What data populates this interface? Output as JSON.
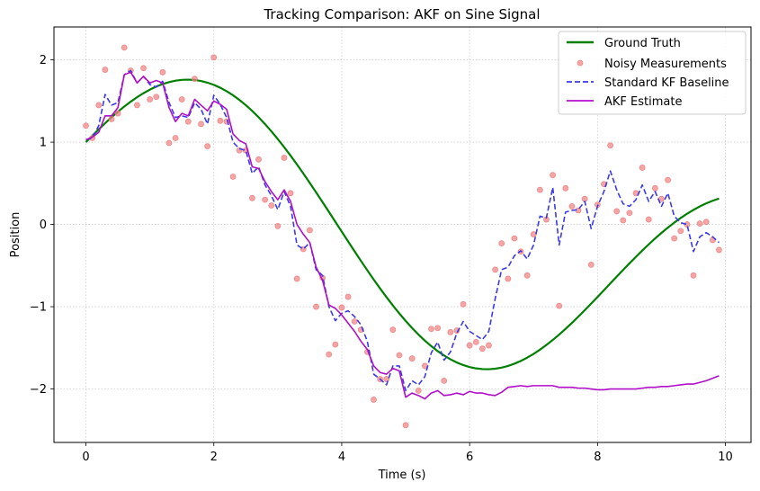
{
  "chart_data": {
    "type": "line",
    "title": "Tracking Comparison: AKF on Sine Signal",
    "xlabel": "Time (s)",
    "ylabel": "Position",
    "xlim": [
      -0.5,
      10.4
    ],
    "ylim": [
      -2.65,
      2.4
    ],
    "x_ticks": [
      0,
      2,
      4,
      6,
      8,
      10
    ],
    "x_tick_labels": [
      "0",
      "2",
      "4",
      "6",
      "8",
      "10"
    ],
    "y_ticks": [
      -2,
      -1,
      0,
      1,
      2
    ],
    "y_tick_labels": [
      "−2",
      "−1",
      "0",
      "1",
      "2"
    ],
    "grid": true,
    "legend_position": "top-right",
    "series": [
      {
        "name": "Ground Truth",
        "kind": "line",
        "color": "#008000",
        "style": "solid",
        "function": "sin(0.8*t) + cos(0.4*t)",
        "t_range": [
          0,
          9.9
        ],
        "t_step": 0.1
      },
      {
        "name": "Noisy Measurements",
        "kind": "scatter",
        "color": "#f08080",
        "x": [
          0.0,
          0.1,
          0.2,
          0.3,
          0.4,
          0.5,
          0.6,
          0.7,
          0.8,
          0.9,
          1.0,
          1.1,
          1.2,
          1.3,
          1.4,
          1.5,
          1.6,
          1.7,
          1.8,
          1.9,
          2.0,
          2.1,
          2.2,
          2.3,
          2.4,
          2.5,
          2.6,
          2.7,
          2.8,
          2.9,
          3.0,
          3.1,
          3.2,
          3.3,
          3.4,
          3.5,
          3.6,
          3.7,
          3.8,
          3.9,
          4.0,
          4.1,
          4.2,
          4.3,
          4.4,
          4.5,
          4.6,
          4.7,
          4.8,
          4.9,
          5.0,
          5.1,
          5.2,
          5.3,
          5.4,
          5.5,
          5.6,
          5.7,
          5.8,
          5.9,
          6.0,
          6.1,
          6.2,
          6.3,
          6.4,
          6.5,
          6.6,
          6.7,
          6.8,
          6.9,
          7.0,
          7.1,
          7.2,
          7.3,
          7.4,
          7.5,
          7.6,
          7.7,
          7.8,
          7.9,
          8.0,
          8.1,
          8.2,
          8.3,
          8.4,
          8.5,
          8.6,
          8.7,
          8.8,
          8.9,
          9.0,
          9.1,
          9.2,
          9.3,
          9.4,
          9.5,
          9.6,
          9.7,
          9.8,
          9.9
        ],
        "y": [
          1.2,
          1.05,
          1.45,
          1.88,
          1.28,
          1.35,
          2.15,
          1.87,
          1.45,
          1.9,
          1.52,
          1.55,
          1.85,
          0.99,
          1.05,
          1.52,
          1.25,
          1.77,
          1.22,
          0.95,
          2.03,
          1.26,
          1.25,
          0.58,
          0.9,
          0.9,
          0.32,
          0.79,
          0.3,
          0.23,
          -0.02,
          0.81,
          0.38,
          -0.66,
          -0.3,
          -0.07,
          -1.0,
          -0.65,
          -1.58,
          -1.46,
          -1.01,
          -0.88,
          -1.18,
          -1.28,
          -1.55,
          -2.13,
          -1.88,
          -1.88,
          -1.28,
          -1.59,
          -2.44,
          -1.63,
          -2.02,
          -1.72,
          -1.27,
          -1.26,
          -1.9,
          -1.31,
          -1.29,
          -0.97,
          -1.47,
          -1.43,
          -1.51,
          -1.47,
          -0.55,
          -0.23,
          -0.66,
          -0.17,
          -0.33,
          -0.62,
          -0.12,
          0.42,
          0.06,
          0.6,
          -0.99,
          0.44,
          0.22,
          0.17,
          0.31,
          -0.49,
          0.24,
          0.49,
          0.96,
          0.16,
          0.05,
          0.14,
          0.38,
          0.69,
          0.06,
          0.44,
          0.31,
          0.54,
          -0.17,
          -0.08,
          0.0,
          -0.62,
          0.01,
          0.03,
          -0.19,
          -0.31
        ]
      },
      {
        "name": "Standard KF Baseline",
        "kind": "line",
        "color": "#3a3ae8",
        "style": "dashed",
        "x": [
          0.0,
          0.1,
          0.2,
          0.3,
          0.4,
          0.5,
          0.6,
          0.7,
          0.8,
          0.9,
          1.0,
          1.1,
          1.2,
          1.3,
          1.4,
          1.5,
          1.6,
          1.7,
          1.8,
          1.9,
          2.0,
          2.1,
          2.2,
          2.3,
          2.4,
          2.5,
          2.6,
          2.7,
          2.8,
          2.9,
          3.0,
          3.1,
          3.2,
          3.3,
          3.4,
          3.5,
          3.6,
          3.7,
          3.8,
          3.9,
          4.0,
          4.1,
          4.2,
          4.3,
          4.4,
          4.5,
          4.6,
          4.7,
          4.8,
          4.9,
          5.0,
          5.1,
          5.2,
          5.3,
          5.4,
          5.5,
          5.6,
          5.7,
          5.8,
          5.9,
          6.0,
          6.1,
          6.2,
          6.3,
          6.4,
          6.5,
          6.6,
          6.7,
          6.8,
          6.9,
          7.0,
          7.1,
          7.2,
          7.3,
          7.4,
          7.5,
          7.6,
          7.7,
          7.8,
          7.9,
          8.0,
          8.1,
          8.2,
          8.3,
          8.4,
          8.5,
          8.6,
          8.7,
          8.8,
          8.9,
          9.0,
          9.1,
          9.2,
          9.3,
          9.4,
          9.5,
          9.6,
          9.7,
          9.8,
          9.9
        ],
        "y": [
          1.03,
          1.05,
          1.2,
          1.58,
          1.45,
          1.48,
          1.82,
          1.87,
          1.72,
          1.8,
          1.7,
          1.67,
          1.74,
          1.48,
          1.3,
          1.32,
          1.3,
          1.48,
          1.4,
          1.22,
          1.57,
          1.46,
          1.3,
          1.0,
          0.92,
          0.9,
          0.62,
          0.7,
          0.48,
          0.35,
          0.18,
          0.4,
          0.22,
          -0.25,
          -0.3,
          -0.22,
          -0.55,
          -0.62,
          -1.0,
          -1.17,
          -1.08,
          -1.05,
          -1.12,
          -1.22,
          -1.42,
          -1.82,
          -1.88,
          -1.95,
          -1.72,
          -1.72,
          -2.02,
          -1.9,
          -1.95,
          -1.85,
          -1.56,
          -1.43,
          -1.65,
          -1.55,
          -1.32,
          -1.18,
          -1.3,
          -1.35,
          -1.4,
          -1.3,
          -0.9,
          -0.55,
          -0.52,
          -0.38,
          -0.32,
          -0.42,
          -0.25,
          0.1,
          0.08,
          0.45,
          -0.25,
          0.15,
          0.17,
          0.18,
          0.28,
          -0.05,
          0.22,
          0.4,
          0.65,
          0.42,
          0.25,
          0.22,
          0.3,
          0.48,
          0.28,
          0.4,
          0.22,
          0.38,
          0.1,
          0.02,
          0.0,
          -0.33,
          -0.15,
          -0.1,
          -0.15,
          -0.22
        ]
      },
      {
        "name": "AKF Estimate",
        "kind": "line",
        "color": "#b00fc8",
        "style": "solid",
        "x": [
          0.0,
          0.1,
          0.2,
          0.3,
          0.4,
          0.5,
          0.6,
          0.7,
          0.8,
          0.9,
          1.0,
          1.1,
          1.2,
          1.3,
          1.4,
          1.5,
          1.6,
          1.7,
          1.8,
          1.9,
          2.0,
          2.1,
          2.2,
          2.3,
          2.4,
          2.5,
          2.6,
          2.7,
          2.8,
          2.9,
          3.0,
          3.1,
          3.2,
          3.3,
          3.4,
          3.5,
          3.6,
          3.7,
          3.8,
          3.9,
          4.0,
          4.1,
          4.2,
          4.3,
          4.4,
          4.5,
          4.6,
          4.7,
          4.8,
          4.9,
          5.0,
          5.1,
          5.2,
          5.3,
          5.4,
          5.5,
          5.6,
          5.7,
          5.8,
          5.9,
          6.0,
          6.1,
          6.2,
          6.3,
          6.4,
          6.5,
          6.6,
          6.7,
          6.8,
          6.9,
          7.0,
          7.1,
          7.2,
          7.3,
          7.4,
          7.5,
          7.6,
          7.7,
          7.8,
          7.9,
          8.0,
          8.1,
          8.2,
          8.3,
          8.4,
          8.5,
          8.6,
          8.7,
          8.8,
          8.9,
          9.0,
          9.1,
          9.2,
          9.3,
          9.4,
          9.5,
          9.6,
          9.7,
          9.8,
          9.9
        ],
        "y": [
          1.03,
          1.06,
          1.12,
          1.32,
          1.32,
          1.42,
          1.82,
          1.85,
          1.72,
          1.8,
          1.72,
          1.75,
          1.72,
          1.42,
          1.25,
          1.35,
          1.32,
          1.52,
          1.45,
          1.38,
          1.5,
          1.46,
          1.4,
          1.1,
          1.02,
          0.98,
          0.7,
          0.68,
          0.52,
          0.4,
          0.3,
          0.42,
          0.28,
          0.0,
          -0.12,
          -0.22,
          -0.52,
          -0.68,
          -0.98,
          -1.02,
          -1.1,
          -1.2,
          -1.3,
          -1.42,
          -1.52,
          -1.72,
          -1.8,
          -1.82,
          -1.75,
          -1.78,
          -2.1,
          -2.05,
          -2.08,
          -2.12,
          -2.05,
          -2.02,
          -2.08,
          -2.07,
          -2.05,
          -2.07,
          -2.03,
          -2.05,
          -2.05,
          -2.07,
          -2.08,
          -2.04,
          -1.98,
          -1.97,
          -1.96,
          -1.97,
          -1.96,
          -1.96,
          -1.96,
          -1.96,
          -1.98,
          -1.98,
          -1.98,
          -1.99,
          -1.99,
          -2.0,
          -2.01,
          -2.01,
          -2.0,
          -2.0,
          -2.0,
          -2.0,
          -2.0,
          -1.99,
          -1.98,
          -1.98,
          -1.97,
          -1.97,
          -1.96,
          -1.95,
          -1.94,
          -1.94,
          -1.92,
          -1.9,
          -1.87,
          -1.84
        ]
      }
    ]
  }
}
